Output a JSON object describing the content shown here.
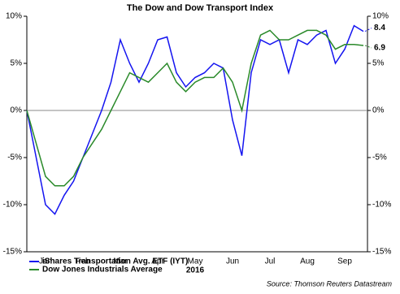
{
  "chart_data": {
    "type": "line",
    "title": "The Dow and Dow Transport Index",
    "x_label": "2016",
    "source": "Source: Thomson Reuters Datastream",
    "categories": [
      null,
      null,
      "Jan",
      null,
      null,
      null,
      "Feb",
      null,
      null,
      null,
      "Mar",
      null,
      null,
      null,
      "Apr",
      null,
      null,
      null,
      "May",
      null,
      null,
      null,
      "Jun",
      null,
      null,
      null,
      "Jul",
      null,
      null,
      null,
      "Aug",
      null,
      null,
      null,
      "Sep",
      null,
      null
    ],
    "series": [
      {
        "name": "iShares Transportation Avg. ETF (IYT)",
        "color": "#1414f0",
        "values": [
          0,
          -5,
          -10,
          -11,
          -9,
          -7.5,
          -5,
          -2.5,
          0,
          3,
          7.5,
          5,
          3,
          5,
          7.5,
          7.8,
          4,
          2.5,
          3.5,
          4,
          5,
          4.5,
          -1,
          -4.8,
          4,
          7.5,
          7,
          7.5,
          4,
          7.5,
          7,
          8,
          8.5,
          5,
          6.5,
          9,
          8.4
        ]
      },
      {
        "name": "Dow Jones Industrials Average",
        "color": "#2a8a2a",
        "values": [
          0,
          -3.5,
          -7,
          -8,
          -8,
          -7,
          -5,
          -3.5,
          -2,
          0,
          2,
          4,
          3.5,
          3,
          4,
          5,
          3,
          2,
          3,
          3.5,
          3.5,
          4.5,
          3,
          0,
          5,
          8,
          8.5,
          7.5,
          7.5,
          8,
          8.5,
          8.5,
          8,
          6.5,
          7,
          7,
          6.9
        ]
      }
    ],
    "ylim": [
      -15,
      10
    ],
    "yticks": [
      {
        "value": -15,
        "label": "-15%"
      },
      {
        "value": -10,
        "label": "-10%"
      },
      {
        "value": -5,
        "label": "-5%"
      },
      {
        "value": 0,
        "label": "0%"
      },
      {
        "value": 5,
        "label": "5%"
      },
      {
        "value": 10,
        "label": "10%"
      }
    ],
    "grid": false
  }
}
